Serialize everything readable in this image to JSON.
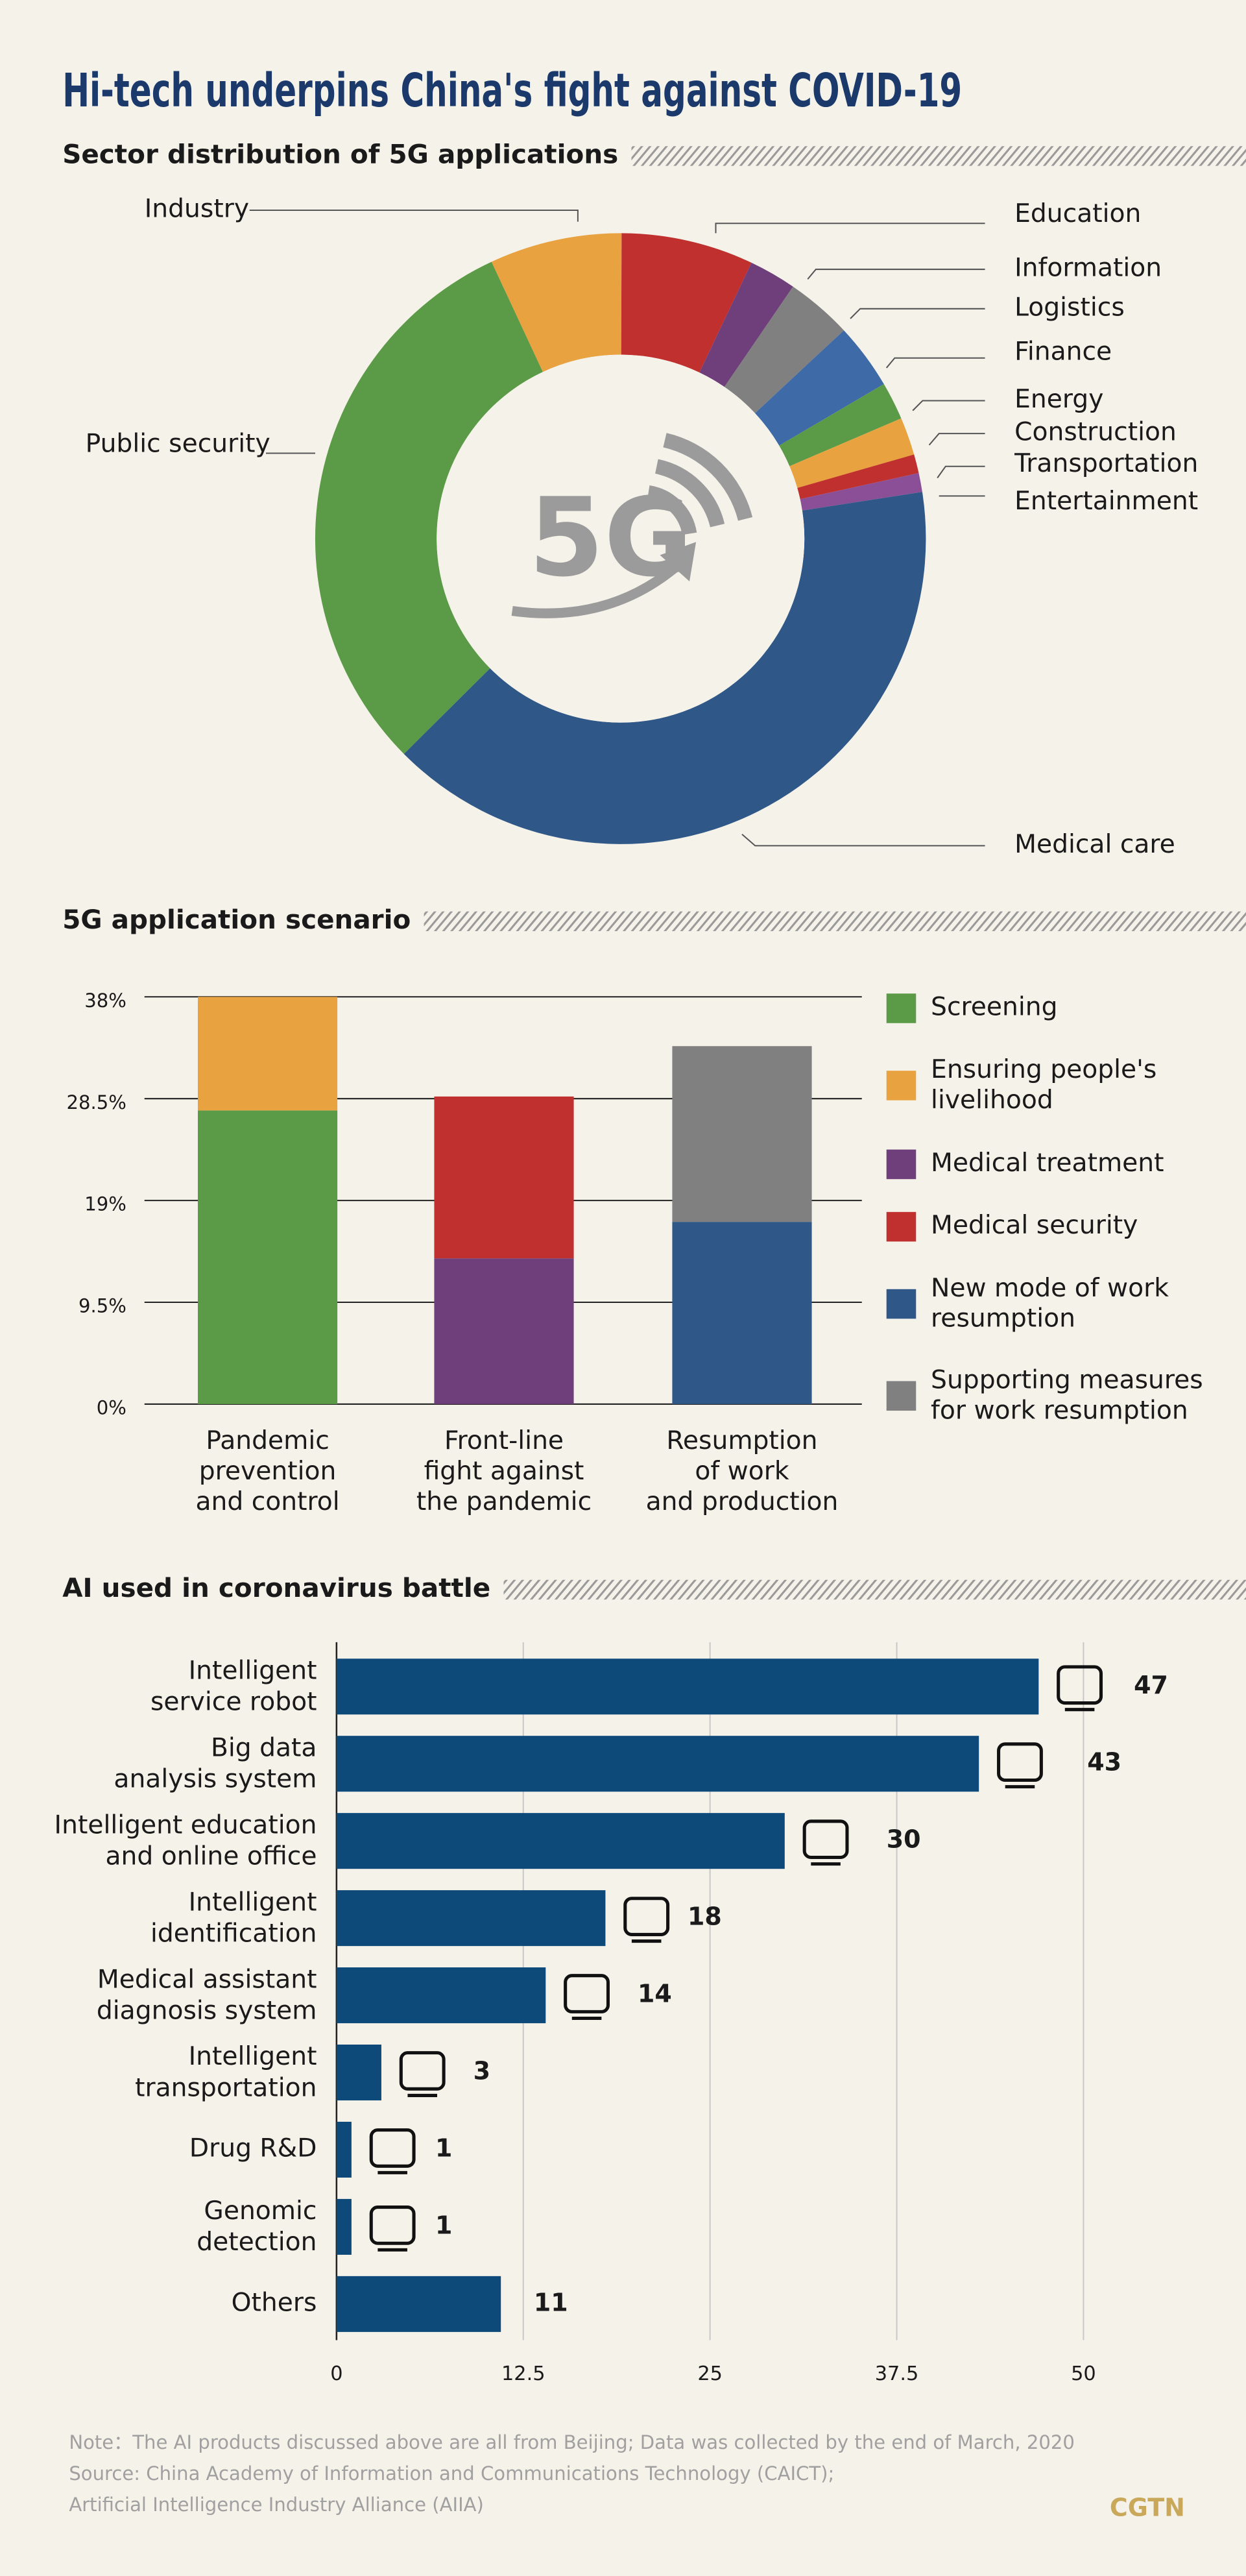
{
  "title": "Hi-tech underpins China's fight against COVID-19",
  "chart_data": [
    {
      "type": "donut",
      "title": "Sector distribution of 5G applications",
      "center_label": "5G",
      "categories": [
        "Industry",
        "Education",
        "Information",
        "Logistics",
        "Finance",
        "Energy",
        "Construction",
        "Transportation",
        "Entertainment",
        "Medical care",
        "Public security"
      ],
      "values": [
        7,
        7,
        2.5,
        3.5,
        3.5,
        2,
        2,
        1,
        1,
        40,
        30.5
      ],
      "colors": [
        "#e8a23f",
        "#c0302f",
        "#6e3f7a",
        "#808080",
        "#3f6aa8",
        "#5b9a47",
        "#e8a23f",
        "#c0302f",
        "#8a4f96",
        "#2f5888",
        "#5b9a47"
      ]
    },
    {
      "type": "stacked_bar",
      "title": "5G application scenario",
      "categories": [
        "Pandemic\nprevention\nand control",
        "Front-line\nfight against\nthe pandemic",
        "Resumption\nof work\nand production"
      ],
      "series": [
        {
          "name": "Screening",
          "color": "#5b9a47",
          "values": [
            27.4,
            null,
            null
          ]
        },
        {
          "name": "Ensuring people's\nlivelihood",
          "color": "#e8a23f",
          "values": [
            10.6,
            null,
            null
          ]
        },
        {
          "name": "Medical treatment",
          "color": "#6e3f7a",
          "values": [
            null,
            13.6,
            null
          ]
        },
        {
          "name": "Medical security",
          "color": "#c0302f",
          "values": [
            null,
            15.1,
            null
          ]
        },
        {
          "name": "New mode of work\nresumption",
          "color": "#2f5888",
          "values": [
            null,
            null,
            17.0
          ]
        },
        {
          "name": "Supporting measures\nfor work resumption",
          "color": "#808080",
          "values": [
            null,
            null,
            16.4
          ]
        }
      ],
      "ylim": [
        0,
        38
      ],
      "yticks": [
        {
          "value": 0,
          "label": "0%"
        },
        {
          "value": 9.5,
          "label": "9.5%"
        },
        {
          "value": 19,
          "label": "19%"
        },
        {
          "value": 28.5,
          "label": "28.5%"
        },
        {
          "value": 38,
          "label": "38%"
        }
      ],
      "grid": true
    },
    {
      "type": "hbar",
      "title": "AI used in coronavirus battle",
      "categories": [
        "Intelligent\nservice robot",
        "Big data\nanalysis system",
        "Intelligent education\nand online office",
        "Intelligent\nidentification",
        "Medical assistant\ndiagnosis system",
        "Intelligent\ntransportation",
        "Drug R&D",
        "Genomic\ndetection",
        "Others"
      ],
      "values": [
        47,
        43,
        30,
        18,
        14,
        3,
        1,
        1,
        11
      ],
      "color": "#0d4a7a",
      "xlim": [
        0,
        50
      ],
      "xticks": [
        0,
        12.5,
        25,
        37.5,
        50
      ],
      "grid": true
    }
  ],
  "notes": [
    "Note：The AI products discussed above are all from Beijing; Data was collected by the end of March, 2020",
    "Source: China Academy of Information and Communications Technology (CAICT);",
    "Artificial Intelligence Industry Alliance (AIIA)"
  ],
  "brand": "CGTN"
}
